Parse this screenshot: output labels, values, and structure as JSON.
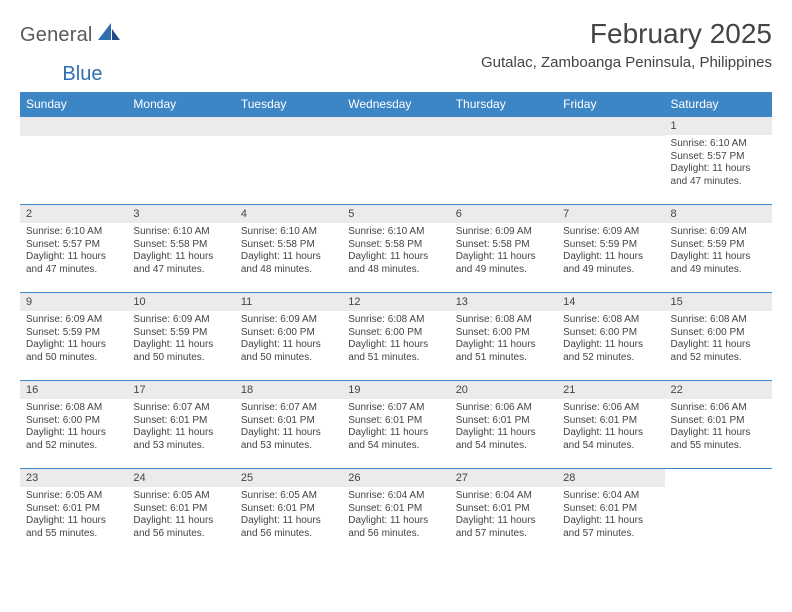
{
  "brand": {
    "general": "General",
    "blue": "Blue"
  },
  "header": {
    "month_title": "February 2025",
    "location": "Gutalac, Zamboanga Peninsula, Philippines"
  },
  "colors": {
    "header_bar": "#3d86c6",
    "daynum_bg": "#ebebeb",
    "text": "#444444",
    "logo_gray": "#5a5a5a",
    "logo_blue": "#2f6fb0"
  },
  "weekdays": [
    "Sunday",
    "Monday",
    "Tuesday",
    "Wednesday",
    "Thursday",
    "Friday",
    "Saturday"
  ],
  "weeks": [
    [
      {
        "blank": true
      },
      {
        "blank": true
      },
      {
        "blank": true
      },
      {
        "blank": true
      },
      {
        "blank": true
      },
      {
        "blank": true
      },
      {
        "day": "1",
        "sunrise": "Sunrise: 6:10 AM",
        "sunset": "Sunset: 5:57 PM",
        "dl1": "Daylight: 11 hours",
        "dl2": "and 47 minutes."
      }
    ],
    [
      {
        "day": "2",
        "sunrise": "Sunrise: 6:10 AM",
        "sunset": "Sunset: 5:57 PM",
        "dl1": "Daylight: 11 hours",
        "dl2": "and 47 minutes."
      },
      {
        "day": "3",
        "sunrise": "Sunrise: 6:10 AM",
        "sunset": "Sunset: 5:58 PM",
        "dl1": "Daylight: 11 hours",
        "dl2": "and 47 minutes."
      },
      {
        "day": "4",
        "sunrise": "Sunrise: 6:10 AM",
        "sunset": "Sunset: 5:58 PM",
        "dl1": "Daylight: 11 hours",
        "dl2": "and 48 minutes."
      },
      {
        "day": "5",
        "sunrise": "Sunrise: 6:10 AM",
        "sunset": "Sunset: 5:58 PM",
        "dl1": "Daylight: 11 hours",
        "dl2": "and 48 minutes."
      },
      {
        "day": "6",
        "sunrise": "Sunrise: 6:09 AM",
        "sunset": "Sunset: 5:58 PM",
        "dl1": "Daylight: 11 hours",
        "dl2": "and 49 minutes."
      },
      {
        "day": "7",
        "sunrise": "Sunrise: 6:09 AM",
        "sunset": "Sunset: 5:59 PM",
        "dl1": "Daylight: 11 hours",
        "dl2": "and 49 minutes."
      },
      {
        "day": "8",
        "sunrise": "Sunrise: 6:09 AM",
        "sunset": "Sunset: 5:59 PM",
        "dl1": "Daylight: 11 hours",
        "dl2": "and 49 minutes."
      }
    ],
    [
      {
        "day": "9",
        "sunrise": "Sunrise: 6:09 AM",
        "sunset": "Sunset: 5:59 PM",
        "dl1": "Daylight: 11 hours",
        "dl2": "and 50 minutes."
      },
      {
        "day": "10",
        "sunrise": "Sunrise: 6:09 AM",
        "sunset": "Sunset: 5:59 PM",
        "dl1": "Daylight: 11 hours",
        "dl2": "and 50 minutes."
      },
      {
        "day": "11",
        "sunrise": "Sunrise: 6:09 AM",
        "sunset": "Sunset: 6:00 PM",
        "dl1": "Daylight: 11 hours",
        "dl2": "and 50 minutes."
      },
      {
        "day": "12",
        "sunrise": "Sunrise: 6:08 AM",
        "sunset": "Sunset: 6:00 PM",
        "dl1": "Daylight: 11 hours",
        "dl2": "and 51 minutes."
      },
      {
        "day": "13",
        "sunrise": "Sunrise: 6:08 AM",
        "sunset": "Sunset: 6:00 PM",
        "dl1": "Daylight: 11 hours",
        "dl2": "and 51 minutes."
      },
      {
        "day": "14",
        "sunrise": "Sunrise: 6:08 AM",
        "sunset": "Sunset: 6:00 PM",
        "dl1": "Daylight: 11 hours",
        "dl2": "and 52 minutes."
      },
      {
        "day": "15",
        "sunrise": "Sunrise: 6:08 AM",
        "sunset": "Sunset: 6:00 PM",
        "dl1": "Daylight: 11 hours",
        "dl2": "and 52 minutes."
      }
    ],
    [
      {
        "day": "16",
        "sunrise": "Sunrise: 6:08 AM",
        "sunset": "Sunset: 6:00 PM",
        "dl1": "Daylight: 11 hours",
        "dl2": "and 52 minutes."
      },
      {
        "day": "17",
        "sunrise": "Sunrise: 6:07 AM",
        "sunset": "Sunset: 6:01 PM",
        "dl1": "Daylight: 11 hours",
        "dl2": "and 53 minutes."
      },
      {
        "day": "18",
        "sunrise": "Sunrise: 6:07 AM",
        "sunset": "Sunset: 6:01 PM",
        "dl1": "Daylight: 11 hours",
        "dl2": "and 53 minutes."
      },
      {
        "day": "19",
        "sunrise": "Sunrise: 6:07 AM",
        "sunset": "Sunset: 6:01 PM",
        "dl1": "Daylight: 11 hours",
        "dl2": "and 54 minutes."
      },
      {
        "day": "20",
        "sunrise": "Sunrise: 6:06 AM",
        "sunset": "Sunset: 6:01 PM",
        "dl1": "Daylight: 11 hours",
        "dl2": "and 54 minutes."
      },
      {
        "day": "21",
        "sunrise": "Sunrise: 6:06 AM",
        "sunset": "Sunset: 6:01 PM",
        "dl1": "Daylight: 11 hours",
        "dl2": "and 54 minutes."
      },
      {
        "day": "22",
        "sunrise": "Sunrise: 6:06 AM",
        "sunset": "Sunset: 6:01 PM",
        "dl1": "Daylight: 11 hours",
        "dl2": "and 55 minutes."
      }
    ],
    [
      {
        "day": "23",
        "sunrise": "Sunrise: 6:05 AM",
        "sunset": "Sunset: 6:01 PM",
        "dl1": "Daylight: 11 hours",
        "dl2": "and 55 minutes."
      },
      {
        "day": "24",
        "sunrise": "Sunrise: 6:05 AM",
        "sunset": "Sunset: 6:01 PM",
        "dl1": "Daylight: 11 hours",
        "dl2": "and 56 minutes."
      },
      {
        "day": "25",
        "sunrise": "Sunrise: 6:05 AM",
        "sunset": "Sunset: 6:01 PM",
        "dl1": "Daylight: 11 hours",
        "dl2": "and 56 minutes."
      },
      {
        "day": "26",
        "sunrise": "Sunrise: 6:04 AM",
        "sunset": "Sunset: 6:01 PM",
        "dl1": "Daylight: 11 hours",
        "dl2": "and 56 minutes."
      },
      {
        "day": "27",
        "sunrise": "Sunrise: 6:04 AM",
        "sunset": "Sunset: 6:01 PM",
        "dl1": "Daylight: 11 hours",
        "dl2": "and 57 minutes."
      },
      {
        "day": "28",
        "sunrise": "Sunrise: 6:04 AM",
        "sunset": "Sunset: 6:01 PM",
        "dl1": "Daylight: 11 hours",
        "dl2": "and 57 minutes."
      },
      {
        "blank": true
      }
    ]
  ]
}
